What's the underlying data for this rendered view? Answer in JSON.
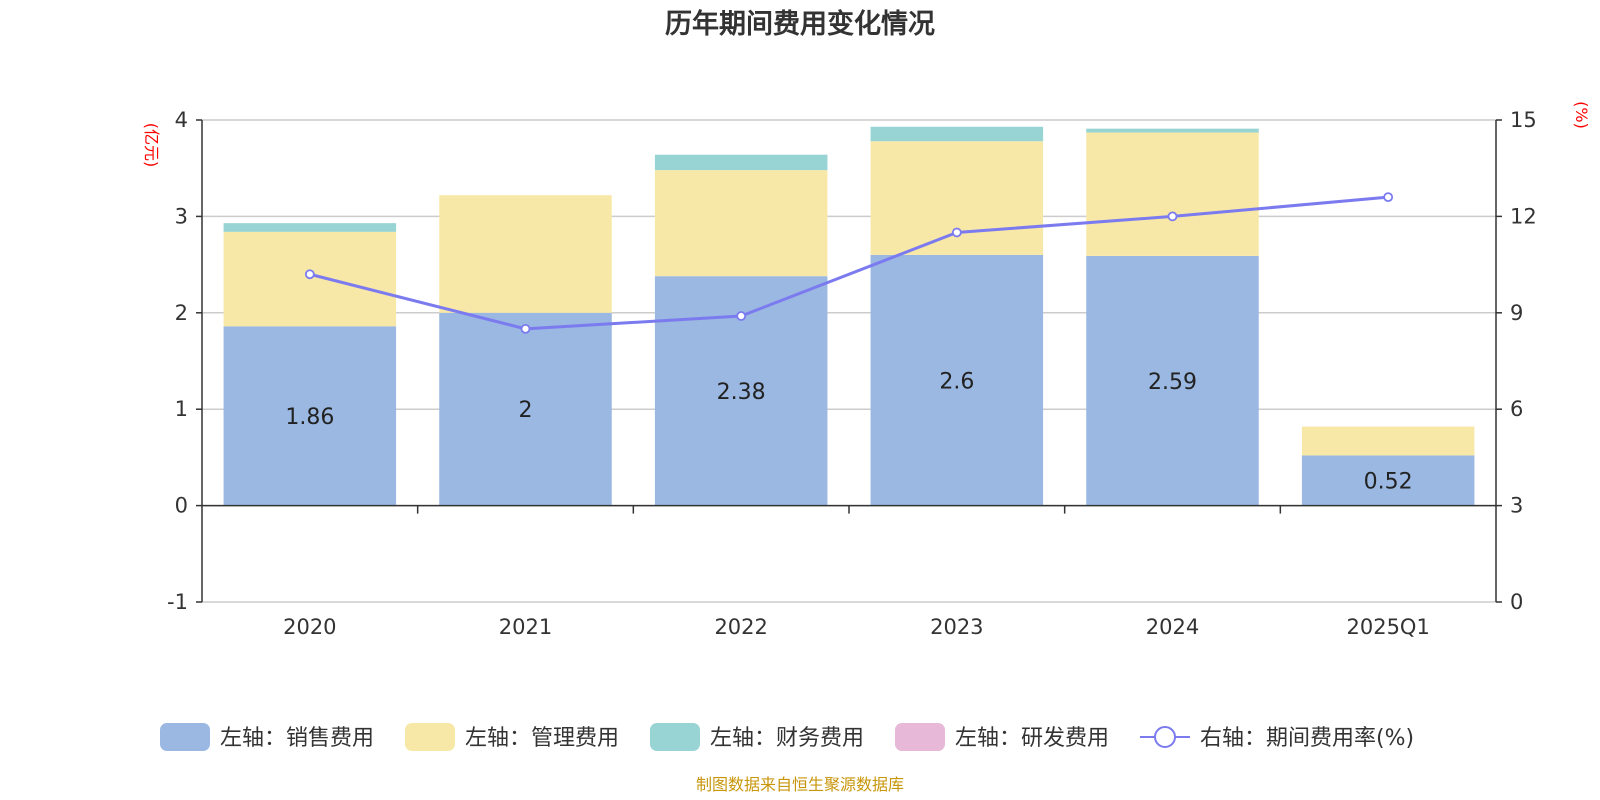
{
  "chart_data": {
    "type": "bar",
    "title": "历年期间费用变化情况",
    "categories": [
      "2020",
      "2021",
      "2022",
      "2023",
      "2024",
      "2025Q1"
    ],
    "series": [
      {
        "name": "左轴：销售费用",
        "axis": "left",
        "color": "#9ab8e2",
        "values": [
          1.86,
          2.0,
          2.38,
          2.6,
          2.59,
          0.52
        ]
      },
      {
        "name": "左轴：管理费用",
        "axis": "left",
        "color": "#f8e8a8",
        "values": [
          0.98,
          1.22,
          1.1,
          1.18,
          1.28,
          0.3
        ]
      },
      {
        "name": "左轴：财务费用",
        "axis": "left",
        "color": "#98d4d4",
        "values": [
          0.09,
          0.0,
          0.16,
          0.15,
          0.04,
          0.0
        ]
      },
      {
        "name": "左轴：研发费用",
        "axis": "left",
        "color": "#e8b8d8",
        "values": [
          0,
          0,
          0,
          0,
          0,
          0
        ]
      },
      {
        "name": "右轴：期间费用率(%)",
        "axis": "right",
        "type": "line",
        "color": "#7b7bef",
        "values": [
          10.2,
          8.5,
          8.9,
          11.5,
          12.0,
          12.6
        ]
      }
    ],
    "data_labels": [
      "1.86",
      "2",
      "2.38",
      "2.6",
      "2.59",
      "0.52"
    ],
    "left_axis": {
      "unit": "(亿元)",
      "ylim": [
        -1,
        4
      ],
      "ticks": [
        "-1",
        "0",
        "1",
        "2",
        "3",
        "4"
      ]
    },
    "right_axis": {
      "unit": "(%)",
      "ylim": [
        0,
        15
      ],
      "ticks": [
        "0",
        "3",
        "6",
        "9",
        "12",
        "15"
      ]
    },
    "grid": true,
    "legend_position": "bottom"
  },
  "footer": "制图数据来自恒生聚源数据库"
}
